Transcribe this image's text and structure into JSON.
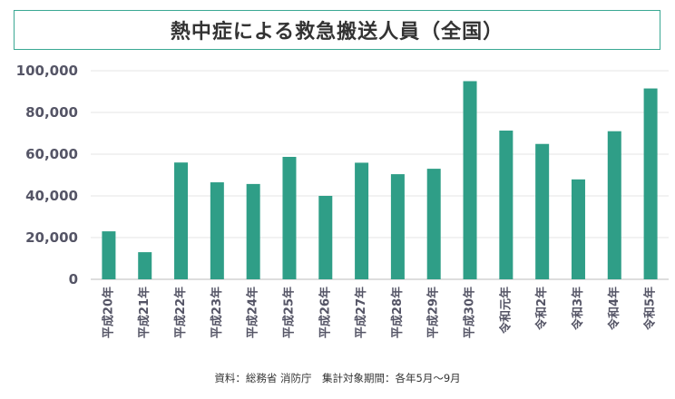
{
  "chart_data": {
    "type": "bar",
    "title": "熱中症による救急搬送人員（全国）",
    "categories": [
      "平成20年",
      "平成21年",
      "平成22年",
      "平成23年",
      "平成24年",
      "平成25年",
      "平成26年",
      "平成27年",
      "平成28年",
      "平成29年",
      "平成30年",
      "令和元年",
      "令和2年",
      "令和3年",
      "令和4年",
      "令和5年"
    ],
    "values": [
      23000,
      13000,
      56000,
      46500,
      45700,
      58700,
      40000,
      55900,
      50400,
      53000,
      95000,
      71300,
      64900,
      47900,
      71000,
      91500
    ],
    "ylim": [
      0,
      100000
    ],
    "yticks": [
      0,
      20000,
      40000,
      60000,
      80000,
      100000
    ],
    "ytick_labels": [
      "0",
      "20,000",
      "40,000",
      "60,000",
      "80,000",
      "100,000"
    ],
    "bar_color": "#2f9e87",
    "grid": true,
    "source": "資料：総務省 消防庁　集計対象期間：各年5月～9月"
  }
}
